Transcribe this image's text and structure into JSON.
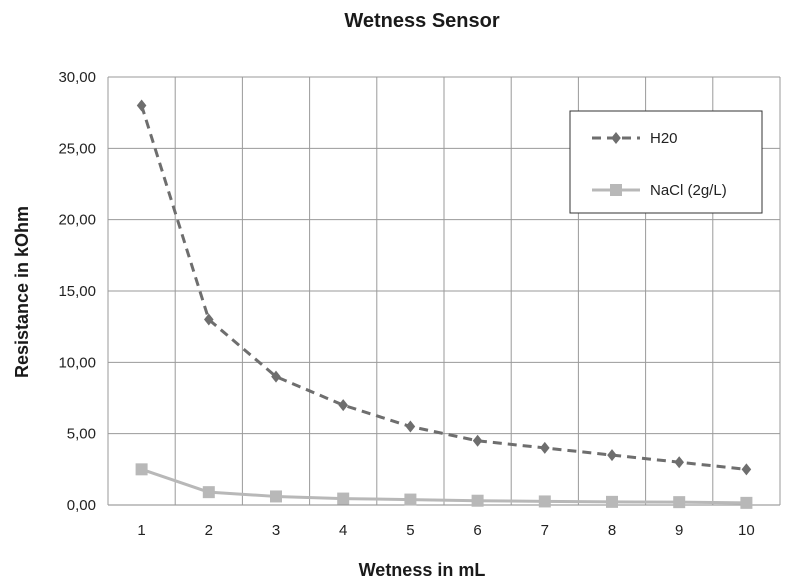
{
  "chart_data": {
    "type": "line",
    "title": "Wetness Sensor",
    "xlabel": "Wetness in mL",
    "ylabel": "Resistance in kOhm",
    "categories": [
      "1",
      "2",
      "3",
      "4",
      "5",
      "6",
      "7",
      "8",
      "9",
      "10"
    ],
    "ylim": [
      0,
      30
    ],
    "yticks": [
      "0,00",
      "5,00",
      "10,00",
      "15,00",
      "20,00",
      "25,00",
      "30,00"
    ],
    "grid": true,
    "legend_position": "top-right",
    "series": [
      {
        "name": "H20",
        "values": [
          28.0,
          13.0,
          9.0,
          7.0,
          5.5,
          4.5,
          4.0,
          3.5,
          3.0,
          2.5
        ],
        "color": "#6e6e6e",
        "line_style": "dashed",
        "marker": "diamond"
      },
      {
        "name": "NaCl (2g/L)",
        "values": [
          2.5,
          0.9,
          0.6,
          0.45,
          0.38,
          0.3,
          0.25,
          0.22,
          0.2,
          0.15
        ],
        "color": "#b8b8b8",
        "line_style": "solid",
        "marker": "square"
      }
    ]
  }
}
